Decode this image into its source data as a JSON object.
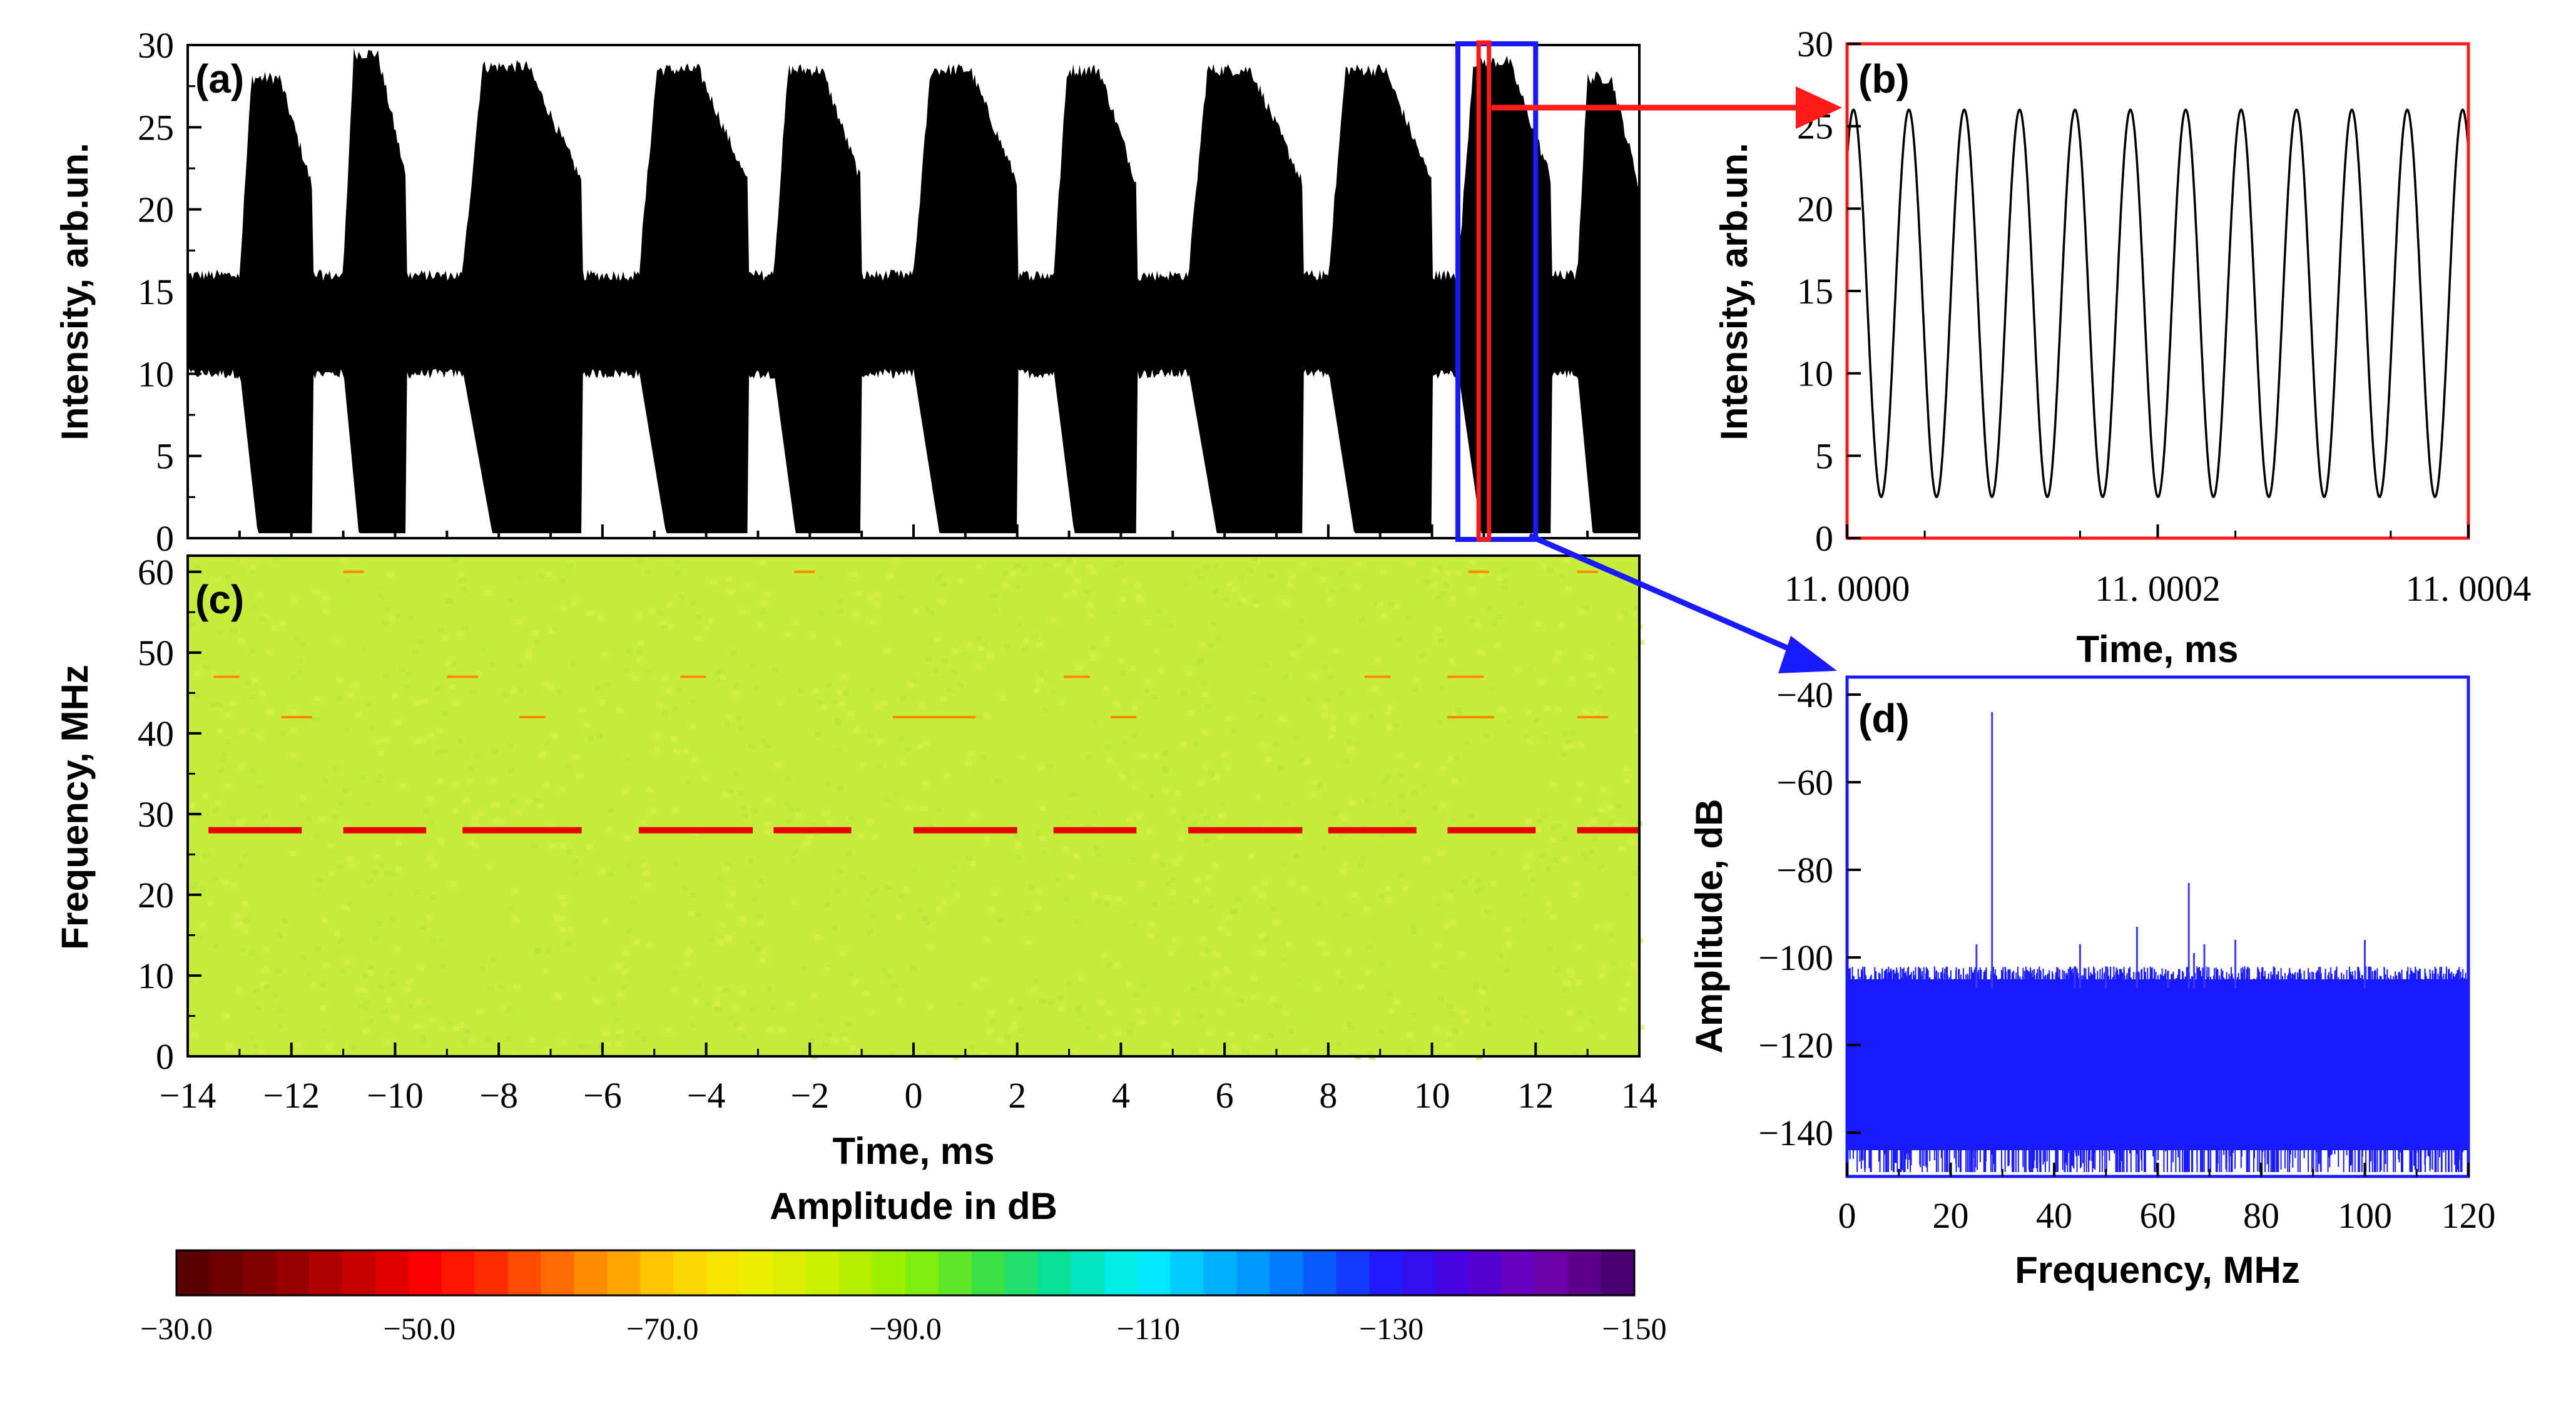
{
  "chart_data": [
    {
      "panel": "a",
      "type": "line",
      "label": "(a)",
      "xlabel": "",
      "ylabel": "Intensity, arb.un.",
      "xlim": [
        -14,
        14
      ],
      "ylim": [
        0,
        30
      ],
      "yticks": [
        "0",
        "5",
        "10",
        "15",
        "20",
        "25",
        "30"
      ],
      "description_values": {
        "baseline_band": [
          10,
          16
        ],
        "bursts": [
          {
            "start": -13.0,
            "end": -11.6,
            "peak": 28
          },
          {
            "start": -11.0,
            "end": -9.8,
            "peak": 29.5
          },
          {
            "start": -8.7,
            "end": -6.4,
            "peak": 28.7
          },
          {
            "start": -5.3,
            "end": -3.2,
            "peak": 28.5
          },
          {
            "start": -2.7,
            "end": -1.0,
            "peak": 28.5
          },
          {
            "start": 0.0,
            "end": 2.0,
            "peak": 28.5
          },
          {
            "start": 2.7,
            "end": 4.3,
            "peak": 28.5
          },
          {
            "start": 5.3,
            "end": 7.5,
            "peak": 28.5
          },
          {
            "start": 8.0,
            "end": 10.0,
            "peak": 28.5
          },
          {
            "start": 10.5,
            "end": 12.3,
            "peak": 29
          },
          {
            "start": 12.8,
            "end": 14.0,
            "peak": 28
          }
        ]
      },
      "highlight_blue": [
        10.5,
        12.0
      ],
      "highlight_red": [
        10.9,
        11.1
      ]
    },
    {
      "panel": "b",
      "type": "line",
      "label": "(b)",
      "xlabel": "Time, ms",
      "ylabel": "Intensity, arb.un.",
      "xlim": [
        11.0,
        11.0004
      ],
      "ylim": [
        0,
        30
      ],
      "xticks": [
        "11.0000",
        "11.0002",
        "11.0004"
      ],
      "yticks": [
        "0",
        "5",
        "10",
        "15",
        "20",
        "25",
        "30"
      ],
      "oscillation": {
        "cycles": 11,
        "min": 2.5,
        "max": 26,
        "start_value": 23
      }
    },
    {
      "panel": "c",
      "type": "heatmap",
      "label": "(c)",
      "xlabel": "Time, ms",
      "ylabel": "Frequency, MHz",
      "xlim": [
        -14,
        14
      ],
      "ylim": [
        0,
        62
      ],
      "xticks": [
        "-14",
        "-12",
        "-10",
        "-8",
        "-6",
        "-4",
        "-2",
        "0",
        "2",
        "4",
        "6",
        "8",
        "10",
        "12",
        "14"
      ],
      "yticks": [
        "0",
        "10",
        "20",
        "30",
        "40",
        "50",
        "60"
      ],
      "background_db": -95,
      "main_line_freq_mhz": 28,
      "main_line_segments": [
        [
          -13.6,
          -11.8
        ],
        [
          -11.0,
          -9.4
        ],
        [
          -8.7,
          -6.4
        ],
        [
          -5.3,
          -3.1
        ],
        [
          -2.7,
          -1.2
        ],
        [
          0.0,
          2.0
        ],
        [
          2.7,
          4.3
        ],
        [
          5.3,
          7.5
        ],
        [
          8.0,
          9.7
        ],
        [
          10.3,
          12.0
        ],
        [
          12.8,
          14.0
        ]
      ],
      "harmonic_marks": [
        {
          "freq": 42,
          "segments": [
            [
              -12.2,
              -11.6
            ],
            [
              -7.6,
              -7.1
            ],
            [
              -0.4,
              1.2
            ],
            [
              3.8,
              4.3
            ],
            [
              10.3,
              11.2
            ],
            [
              12.8,
              13.4
            ]
          ]
        },
        {
          "freq": 47,
          "segments": [
            [
              -13.5,
              -13.0
            ],
            [
              -9.0,
              -8.4
            ],
            [
              -4.5,
              -4.0
            ],
            [
              2.9,
              3.4
            ],
            [
              8.7,
              9.2
            ],
            [
              10.3,
              11.0
            ]
          ]
        },
        {
          "freq": 60,
          "segments": [
            [
              -11.0,
              -10.6
            ],
            [
              -2.3,
              -1.9
            ],
            [
              10.7,
              11.1
            ],
            [
              12.8,
              13.2
            ]
          ]
        }
      ]
    },
    {
      "panel": "d",
      "type": "line",
      "label": "(d)",
      "xlabel": "Frequency, MHz",
      "ylabel": "Amplitude, dB",
      "xlim": [
        0,
        120
      ],
      "ylim": [
        -150,
        -36
      ],
      "xticks": [
        "0",
        "20",
        "40",
        "60",
        "80",
        "100",
        "120"
      ],
      "yticks": [
        "-140",
        "-120",
        "-100",
        "-80",
        "-60",
        "-40"
      ],
      "noise_floor": {
        "top": -107,
        "bottom": -148
      },
      "peaks": [
        {
          "x": 25,
          "y": -97
        },
        {
          "x": 28,
          "y": -44
        },
        {
          "x": 44,
          "y": -102
        },
        {
          "x": 45,
          "y": -97
        },
        {
          "x": 50,
          "y": -102
        },
        {
          "x": 56,
          "y": -93
        },
        {
          "x": 62,
          "y": -103
        },
        {
          "x": 66,
          "y": -83
        },
        {
          "x": 67,
          "y": -99
        },
        {
          "x": 69,
          "y": -97
        },
        {
          "x": 75,
          "y": -96
        },
        {
          "x": 100,
          "y": -96
        }
      ]
    }
  ],
  "colorbar": {
    "title": "Amplitude in dB",
    "tick_labels": [
      "-30.0",
      "-50.0",
      "-70.0",
      "-90.0",
      "-110",
      "-130",
      "-150"
    ],
    "range": [
      -30,
      -150
    ],
    "colors": [
      "#5a0000",
      "#8a0000",
      "#c00000",
      "#ff0000",
      "#ff3c00",
      "#ff8a00",
      "#ffcc00",
      "#f0f000",
      "#c8f000",
      "#90f000",
      "#40e040",
      "#00e0a0",
      "#00f0ff",
      "#00b0ff",
      "#0070ff",
      "#1d1dff",
      "#4a00e0",
      "#7000b0",
      "#4a0070"
    ]
  }
}
